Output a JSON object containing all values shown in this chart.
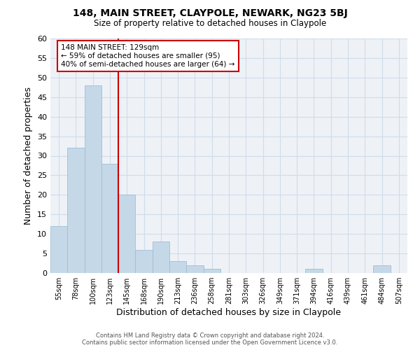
{
  "title": "148, MAIN STREET, CLAYPOLE, NEWARK, NG23 5BJ",
  "subtitle": "Size of property relative to detached houses in Claypole",
  "xlabel": "Distribution of detached houses by size in Claypole",
  "ylabel": "Number of detached properties",
  "bin_labels": [
    "55sqm",
    "78sqm",
    "100sqm",
    "123sqm",
    "145sqm",
    "168sqm",
    "190sqm",
    "213sqm",
    "236sqm",
    "258sqm",
    "281sqm",
    "303sqm",
    "326sqm",
    "349sqm",
    "371sqm",
    "394sqm",
    "416sqm",
    "439sqm",
    "461sqm",
    "484sqm",
    "507sqm"
  ],
  "bar_heights": [
    12,
    32,
    48,
    28,
    20,
    6,
    8,
    3,
    2,
    1,
    0,
    0,
    0,
    0,
    0,
    1,
    0,
    0,
    0,
    2,
    0
  ],
  "bar_color": "#c5d8e8",
  "bar_edge_color": "#a0bdd4",
  "vline_x": 3,
  "vline_color": "#cc0000",
  "ylim": [
    0,
    60
  ],
  "yticks": [
    0,
    5,
    10,
    15,
    20,
    25,
    30,
    35,
    40,
    45,
    50,
    55,
    60
  ],
  "annotation_title": "148 MAIN STREET: 129sqm",
  "annotation_line1": "← 59% of detached houses are smaller (95)",
  "annotation_line2": "40% of semi-detached houses are larger (64) →",
  "footer1": "Contains HM Land Registry data © Crown copyright and database right 2024.",
  "footer2": "Contains public sector information licensed under the Open Government Licence v3.0.",
  "grid_color": "#d0dce8",
  "background_color": "#eef2f7"
}
